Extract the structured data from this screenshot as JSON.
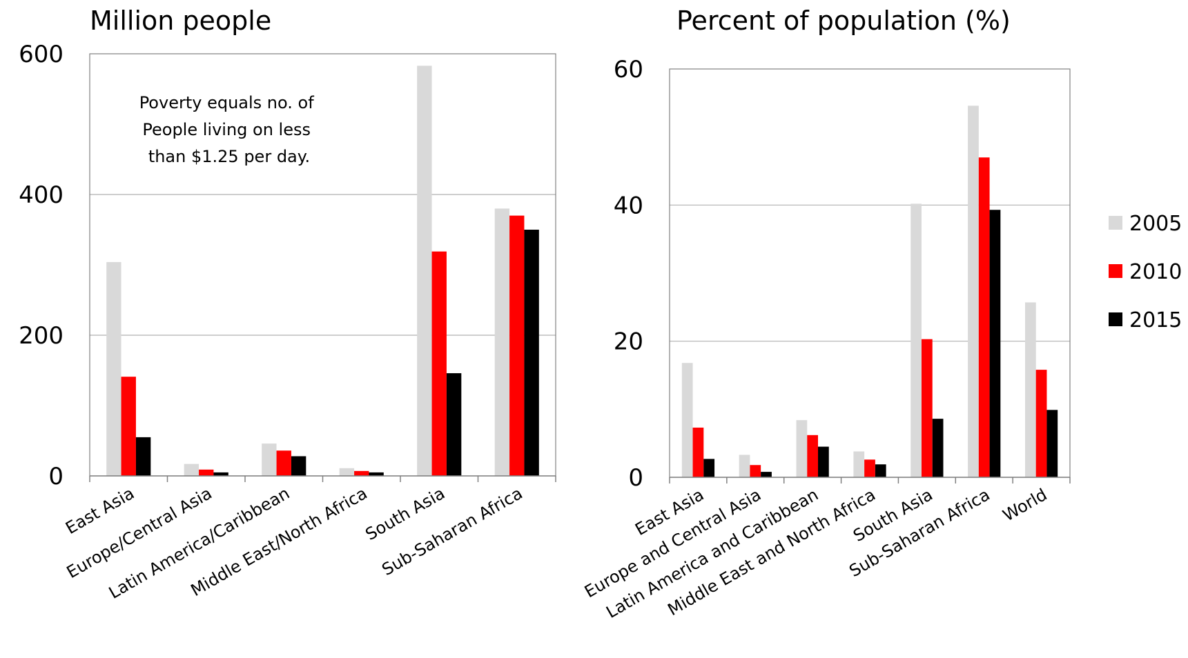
{
  "chart_data": [
    {
      "type": "bar",
      "title": "Million people",
      "xlabel": "",
      "ylabel": "",
      "ylim": [
        0,
        600
      ],
      "yticks": [
        "0",
        "200",
        "400",
        "600"
      ],
      "grid": true,
      "annotation": [
        "Poverty equals no. of",
        "People living on less",
        "than $1.25 per day."
      ],
      "categories": [
        "East Asia",
        "Europe/Central Asia",
        "Latin America/Caribbean",
        "Middle East/North Africa",
        "South Asia",
        "Sub-Saharan Africa"
      ],
      "series": [
        {
          "name": "2005",
          "values": [
            304,
            17,
            46,
            11,
            583,
            380
          ]
        },
        {
          "name": "2010",
          "values": [
            141,
            9,
            36,
            7,
            319,
            370
          ]
        },
        {
          "name": "2015",
          "values": [
            55,
            5,
            28,
            5,
            146,
            350
          ]
        }
      ]
    },
    {
      "type": "bar",
      "title": "Percent of population (%)",
      "xlabel": "",
      "ylabel": "",
      "ylim": [
        0,
        60
      ],
      "yticks": [
        "0",
        "20",
        "40",
        "60"
      ],
      "grid": true,
      "legend_position": "right",
      "categories": [
        "East Asia",
        "Europe and Central Asia",
        "Latin America and Caribbean",
        "Middle East and North Africa",
        "South Asia",
        "Sub-Saharan Africa",
        "World"
      ],
      "series": [
        {
          "name": "2005",
          "values": [
            16.8,
            3.3,
            8.4,
            3.8,
            40.2,
            54.6,
            25.7
          ]
        },
        {
          "name": "2010",
          "values": [
            7.3,
            1.8,
            6.2,
            2.6,
            20.3,
            47.0,
            15.8
          ]
        },
        {
          "name": "2015",
          "values": [
            2.7,
            0.8,
            4.5,
            1.9,
            8.6,
            39.3,
            9.9
          ]
        }
      ]
    }
  ],
  "legend": {
    "items": [
      {
        "label": "2005",
        "color": "#d9d9d9"
      },
      {
        "label": "2010",
        "color": "#ff0000"
      },
      {
        "label": "2015",
        "color": "#000000"
      }
    ]
  }
}
